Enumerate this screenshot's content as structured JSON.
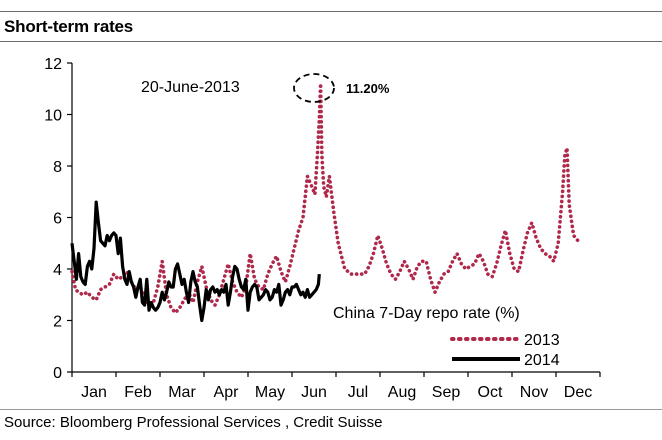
{
  "header": {
    "title": "Short-term rates"
  },
  "footer": {
    "source": "Source: Bloomberg Professional Services , Credit Suisse"
  },
  "chart_data": {
    "type": "line",
    "title": "China 7-Day repo rate (%)",
    "ylim": [
      0,
      12
    ],
    "yticks": [
      "0",
      "2",
      "4",
      "6",
      "8",
      "10",
      "12"
    ],
    "categories": [
      "Jan",
      "Feb",
      "Mar",
      "Apr",
      "May",
      "Jun",
      "Jul",
      "Aug",
      "Sep",
      "Oct",
      "Nov",
      "Dec"
    ],
    "legend_position": "bottom-right",
    "annotations": {
      "date": "20-June-2013",
      "peak": "11.20%"
    },
    "peak": {
      "x": 5.65,
      "y": 11.2
    },
    "series": [
      {
        "name": "2013",
        "color": "#b0284a",
        "style": "dotted",
        "x": [
          0.0,
          0.08,
          0.15,
          0.25,
          0.35,
          0.45,
          0.55,
          0.65,
          0.75,
          0.85,
          0.95,
          1.05,
          1.15,
          1.25,
          1.35,
          1.45,
          1.55,
          1.65,
          1.75,
          1.85,
          1.95,
          2.05,
          2.15,
          2.25,
          2.35,
          2.45,
          2.55,
          2.65,
          2.75,
          2.85,
          2.95,
          3.05,
          3.15,
          3.25,
          3.35,
          3.45,
          3.55,
          3.65,
          3.75,
          3.85,
          3.95,
          4.05,
          4.15,
          4.25,
          4.35,
          4.45,
          4.55,
          4.65,
          4.75,
          4.85,
          4.95,
          5.05,
          5.15,
          5.25,
          5.35,
          5.45,
          5.52,
          5.58,
          5.62,
          5.65,
          5.68,
          5.72,
          5.78,
          5.85,
          5.95,
          6.05,
          6.2,
          6.35,
          6.5,
          6.65,
          6.75,
          6.85,
          6.95,
          7.05,
          7.15,
          7.25,
          7.35,
          7.45,
          7.55,
          7.65,
          7.75,
          7.85,
          7.95,
          8.05,
          8.15,
          8.25,
          8.35,
          8.45,
          8.55,
          8.65,
          8.75,
          8.85,
          8.95,
          9.05,
          9.15,
          9.25,
          9.35,
          9.45,
          9.55,
          9.65,
          9.75,
          9.85,
          9.95,
          10.05,
          10.15,
          10.25,
          10.35,
          10.45,
          10.55,
          10.65,
          10.75,
          10.85,
          10.95,
          11.05,
          11.15,
          11.2,
          11.25,
          11.3,
          11.4,
          11.5
        ],
        "values": [
          3.9,
          3.2,
          3.1,
          3.0,
          3.1,
          2.9,
          2.8,
          3.2,
          3.3,
          3.4,
          3.8,
          3.6,
          3.7,
          3.9,
          3.5,
          3.2,
          3.3,
          2.9,
          2.6,
          2.7,
          3.3,
          4.3,
          3.0,
          2.5,
          2.3,
          2.5,
          2.8,
          3.1,
          2.7,
          3.5,
          4.1,
          3.3,
          2.8,
          2.6,
          3.0,
          3.6,
          4.2,
          3.5,
          3.1,
          2.9,
          3.3,
          4.6,
          3.6,
          3.3,
          3.2,
          3.8,
          4.2,
          4.5,
          3.9,
          3.5,
          4.1,
          4.8,
          5.5,
          6.0,
          7.6,
          7.2,
          6.9,
          8.5,
          9.8,
          11.2,
          8.4,
          7.2,
          6.8,
          7.6,
          6.2,
          5.0,
          4.0,
          3.8,
          3.8,
          3.8,
          4.1,
          4.6,
          5.3,
          4.8,
          4.2,
          3.8,
          3.6,
          3.9,
          4.3,
          4.0,
          3.6,
          4.1,
          4.3,
          4.3,
          3.6,
          3.1,
          3.5,
          3.8,
          3.9,
          4.3,
          4.6,
          4.2,
          4.0,
          4.1,
          4.2,
          4.6,
          4.3,
          3.8,
          3.7,
          4.2,
          4.9,
          5.5,
          4.6,
          4.0,
          3.9,
          4.7,
          5.4,
          5.8,
          5.2,
          4.8,
          4.6,
          4.5,
          4.3,
          5.0,
          7.0,
          8.4,
          8.7,
          6.5,
          5.3,
          5.1
        ]
      },
      {
        "name": "2014",
        "color": "#000000",
        "style": "solid",
        "x": [
          0.0,
          0.05,
          0.1,
          0.15,
          0.2,
          0.25,
          0.3,
          0.35,
          0.4,
          0.45,
          0.5,
          0.55,
          0.6,
          0.65,
          0.7,
          0.75,
          0.8,
          0.85,
          0.9,
          0.95,
          1.0,
          1.05,
          1.1,
          1.15,
          1.2,
          1.25,
          1.3,
          1.35,
          1.4,
          1.45,
          1.5,
          1.55,
          1.6,
          1.65,
          1.7,
          1.75,
          1.8,
          1.85,
          1.9,
          1.95,
          2.0,
          2.05,
          2.1,
          2.15,
          2.2,
          2.25,
          2.3,
          2.35,
          2.4,
          2.45,
          2.5,
          2.55,
          2.6,
          2.65,
          2.7,
          2.75,
          2.8,
          2.85,
          2.9,
          2.95,
          3.0,
          3.05,
          3.1,
          3.15,
          3.2,
          3.25,
          3.3,
          3.35,
          3.4,
          3.45,
          3.5,
          3.55,
          3.6,
          3.65,
          3.7,
          3.75,
          3.8,
          3.85,
          3.9,
          3.95,
          4.0,
          4.05,
          4.1,
          4.15,
          4.2,
          4.25,
          4.3,
          4.35,
          4.4,
          4.45,
          4.5,
          4.55,
          4.6,
          4.65,
          4.7,
          4.75,
          4.8,
          4.85,
          4.9,
          4.95,
          5.0,
          5.05,
          5.1,
          5.15,
          5.2,
          5.25,
          5.3,
          5.35,
          5.4,
          5.45,
          5.5,
          5.55,
          5.6,
          5.62
        ],
        "values": [
          5.0,
          4.3,
          3.6,
          4.6,
          3.7,
          3.5,
          3.4,
          4.1,
          4.3,
          4.0,
          4.8,
          6.6,
          5.8,
          5.1,
          5.0,
          4.9,
          5.3,
          5.1,
          5.3,
          5.4,
          5.3,
          4.6,
          5.2,
          4.1,
          3.6,
          3.4,
          3.9,
          3.5,
          3.3,
          2.9,
          3.3,
          3.6,
          2.7,
          2.6,
          3.6,
          2.4,
          2.7,
          2.5,
          2.4,
          2.5,
          2.7,
          3.1,
          2.8,
          3.1,
          3.5,
          3.3,
          3.3,
          4.0,
          4.2,
          3.8,
          3.4,
          3.6,
          3.1,
          2.7,
          3.5,
          3.9,
          3.5,
          3.3,
          2.6,
          2.0,
          2.5,
          3.2,
          2.8,
          3.2,
          3.3,
          3.1,
          3.2,
          3.0,
          3.2,
          3.1,
          3.4,
          2.6,
          3.1,
          3.7,
          4.1,
          4.0,
          3.6,
          3.3,
          3.2,
          3.6,
          2.4,
          3.1,
          3.3,
          3.4,
          3.3,
          2.8,
          2.9,
          3.0,
          3.2,
          3.1,
          2.8,
          2.9,
          3.2,
          3.1,
          3.4,
          2.6,
          2.8,
          3.1,
          3.2,
          3.0,
          3.3,
          3.3,
          3.4,
          3.2,
          3.0,
          3.1,
          2.9,
          3.2,
          2.9,
          3.0,
          3.1,
          3.2,
          3.4,
          3.8
        ]
      }
    ]
  }
}
